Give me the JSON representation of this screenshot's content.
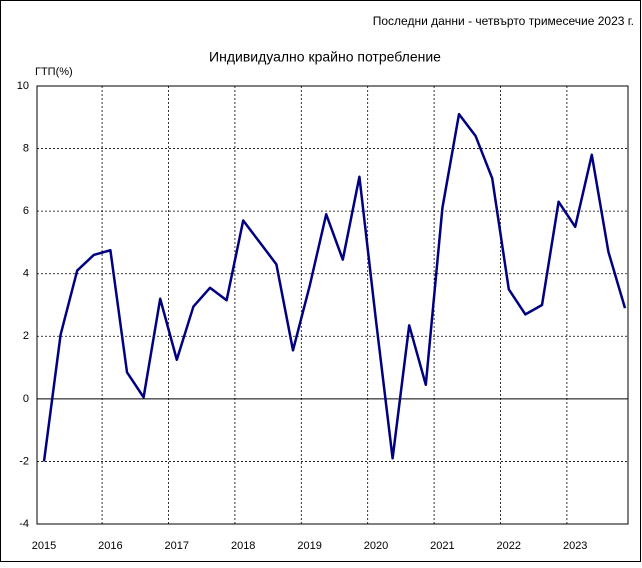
{
  "chart_data": {
    "type": "line",
    "note": "Последни данни - четвърто тримесечие 2023 г.",
    "title": "Индивидуално крайно потребление",
    "y_label": "ГТП(%)",
    "categories": [
      "2015",
      null,
      null,
      null,
      "2016",
      null,
      null,
      null,
      "2017",
      null,
      null,
      null,
      "2018",
      null,
      null,
      null,
      "2019",
      null,
      null,
      null,
      "2020",
      null,
      null,
      null,
      "2021",
      null,
      null,
      null,
      "2022",
      null,
      null,
      null,
      "2023",
      null,
      null,
      null
    ],
    "series": [
      {
        "name": "ГТП",
        "color": "#000080",
        "values": [
          -2.0,
          2.05,
          4.1,
          4.6,
          4.75,
          0.85,
          0.05,
          3.2,
          1.25,
          2.95,
          3.55,
          3.15,
          5.7,
          5.0,
          4.3,
          1.55,
          3.6,
          5.9,
          4.45,
          7.1,
          2.5,
          -1.9,
          2.35,
          0.45,
          6.1,
          9.1,
          8.4,
          7.05,
          3.5,
          2.7,
          3.0,
          6.3,
          5.5,
          7.8,
          4.7,
          2.9
        ]
      }
    ],
    "ylim": [
      -4,
      10
    ],
    "yticks": [
      -4,
      -2,
      0,
      2,
      4,
      6,
      8,
      10
    ],
    "grid": true
  }
}
